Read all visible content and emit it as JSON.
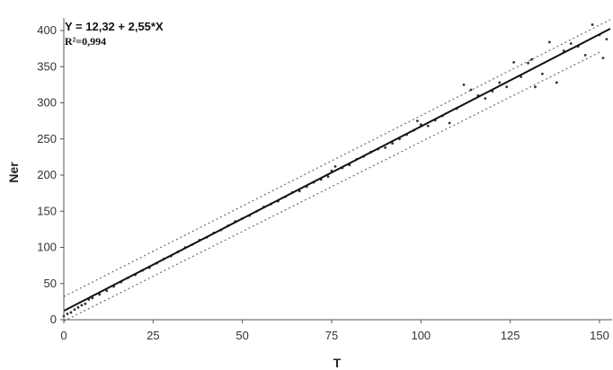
{
  "chart_data": {
    "type": "scatter",
    "title": "",
    "xlabel": "T",
    "ylabel": "Ner",
    "xlim": [
      0,
      153
    ],
    "ylim": [
      0,
      415
    ],
    "x_ticks": [
      0,
      25,
      50,
      75,
      100,
      125,
      150
    ],
    "y_ticks": [
      0,
      50,
      100,
      150,
      200,
      250,
      300,
      350,
      400
    ],
    "grid": false,
    "annotation": {
      "equation": "Y = 12,32 + 2,55*X",
      "r2_label": "R²=0,994"
    },
    "regression": {
      "intercept": 12.32,
      "slope": 2.55
    },
    "prediction_band": {
      "lower": [
        [
          0,
          -2
        ],
        [
          150,
          370
        ]
      ],
      "upper": [
        [
          0,
          32
        ],
        [
          153,
          415
        ]
      ]
    },
    "points": [
      [
        0,
        5
      ],
      [
        1,
        8
      ],
      [
        2,
        10
      ],
      [
        3,
        14
      ],
      [
        4,
        17
      ],
      [
        5,
        20
      ],
      [
        6,
        22
      ],
      [
        7,
        28
      ],
      [
        8,
        30
      ],
      [
        10,
        35
      ],
      [
        12,
        40
      ],
      [
        14,
        46
      ],
      [
        16,
        52
      ],
      [
        18,
        58
      ],
      [
        20,
        62
      ],
      [
        22,
        68
      ],
      [
        24,
        72
      ],
      [
        26,
        78
      ],
      [
        28,
        84
      ],
      [
        30,
        88
      ],
      [
        32,
        94
      ],
      [
        34,
        100
      ],
      [
        36,
        104
      ],
      [
        38,
        110
      ],
      [
        40,
        114
      ],
      [
        42,
        120
      ],
      [
        44,
        124
      ],
      [
        46,
        130
      ],
      [
        48,
        136
      ],
      [
        50,
        140
      ],
      [
        52,
        144
      ],
      [
        54,
        150
      ],
      [
        56,
        156
      ],
      [
        58,
        160
      ],
      [
        60,
        164
      ],
      [
        62,
        170
      ],
      [
        64,
        176
      ],
      [
        66,
        178
      ],
      [
        68,
        184
      ],
      [
        70,
        190
      ],
      [
        72,
        194
      ],
      [
        74,
        198
      ],
      [
        75,
        206
      ],
      [
        76,
        212
      ],
      [
        78,
        210
      ],
      [
        80,
        214
      ],
      [
        82,
        222
      ],
      [
        84,
        226
      ],
      [
        86,
        232
      ],
      [
        88,
        236
      ],
      [
        90,
        238
      ],
      [
        92,
        244
      ],
      [
        94,
        250
      ],
      [
        96,
        256
      ],
      [
        98,
        262
      ],
      [
        99,
        275
      ],
      [
        100,
        270
      ],
      [
        102,
        268
      ],
      [
        104,
        276
      ],
      [
        106,
        282
      ],
      [
        108,
        272
      ],
      [
        110,
        292
      ],
      [
        112,
        325
      ],
      [
        114,
        318
      ],
      [
        116,
        310
      ],
      [
        118,
        306
      ],
      [
        120,
        316
      ],
      [
        122,
        328
      ],
      [
        124,
        322
      ],
      [
        126,
        356
      ],
      [
        128,
        336
      ],
      [
        130,
        355
      ],
      [
        131,
        360
      ],
      [
        132,
        322
      ],
      [
        134,
        340
      ],
      [
        136,
        384
      ],
      [
        138,
        328
      ],
      [
        140,
        372
      ],
      [
        142,
        382
      ],
      [
        144,
        378
      ],
      [
        146,
        366
      ],
      [
        148,
        408
      ],
      [
        150,
        394
      ],
      [
        151,
        362
      ],
      [
        152,
        388
      ]
    ]
  }
}
